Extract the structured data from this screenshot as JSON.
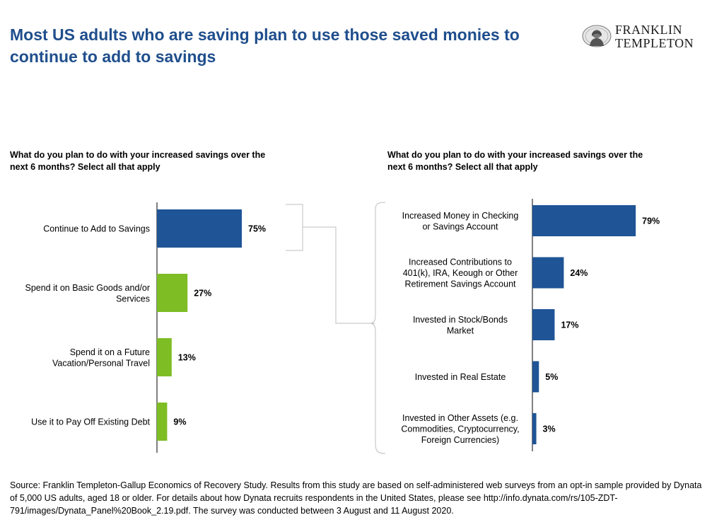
{
  "header": {
    "title": "Most US adults who are saving plan to use those saved monies to continue to add to savings",
    "logo_text_line1": "FRANKLIN",
    "logo_text_line2": "TEMPLETON"
  },
  "colors": {
    "title": "#1f4e8c",
    "blue_bar": "#1f5496",
    "green_bar": "#7ebd24",
    "connector": "#bfbfbf",
    "axis": "#000000"
  },
  "chart_data": [
    {
      "type": "bar",
      "orientation": "horizontal",
      "title": "What do you plan to do with your increased savings over the next 6 months? Select all that apply",
      "unit": "%",
      "categories": [
        [
          "Continue to Add to Savings"
        ],
        [
          "Spend it on Basic Goods and/or",
          "Services"
        ],
        [
          "Spend it on a Future",
          "Vacation/Personal Travel"
        ],
        [
          "Use it to Pay Off Existing Debt"
        ]
      ],
      "values": [
        75,
        27,
        13,
        9
      ],
      "bar_colors": [
        "#1f5496",
        "#7ebd24",
        "#7ebd24",
        "#7ebd24"
      ],
      "data_labels": [
        "75%",
        "27%",
        "13%",
        "9%"
      ],
      "xlim": [
        0,
        100
      ],
      "grid": false
    },
    {
      "type": "bar",
      "orientation": "horizontal",
      "title": "What do you plan to do with your increased savings over the next 6 months? Select all that apply",
      "unit": "%",
      "categories": [
        [
          "Increased Money in Checking",
          "or Savings Account"
        ],
        [
          "Increased Contributions to",
          "401(k), IRA, Keough or Other",
          "Retirement Savings Account"
        ],
        [
          "Invested in Stock/Bonds",
          "Market"
        ],
        [
          "Invested in Real Estate"
        ],
        [
          "Invested in Other Assets (e.g.",
          "Commodities, Cryptocurrency,",
          "Foreign Currencies)"
        ]
      ],
      "values": [
        79,
        24,
        17,
        5,
        3
      ],
      "bar_colors": [
        "#1f5496",
        "#1f5496",
        "#1f5496",
        "#1f5496",
        "#1f5496"
      ],
      "data_labels": [
        "79%",
        "24%",
        "17%",
        "5%",
        "3%"
      ],
      "xlim": [
        0,
        100
      ],
      "grid": false
    }
  ],
  "footer": {
    "source": "Source: Franklin Templeton-Gallup Economics of Recovery Study. Results from this study are based on self-administered web surveys from an opt-in sample provided by Dynata of 5,000 US adults, aged 18 or older. For details about how Dynata recruits respondents in the United States, please see http://info.dynata.com/rs/105-ZDT-791/images/Dynata_Panel%20Book_2.19.pdf. The survey was conducted between 3 August and 11 August 2020."
  }
}
